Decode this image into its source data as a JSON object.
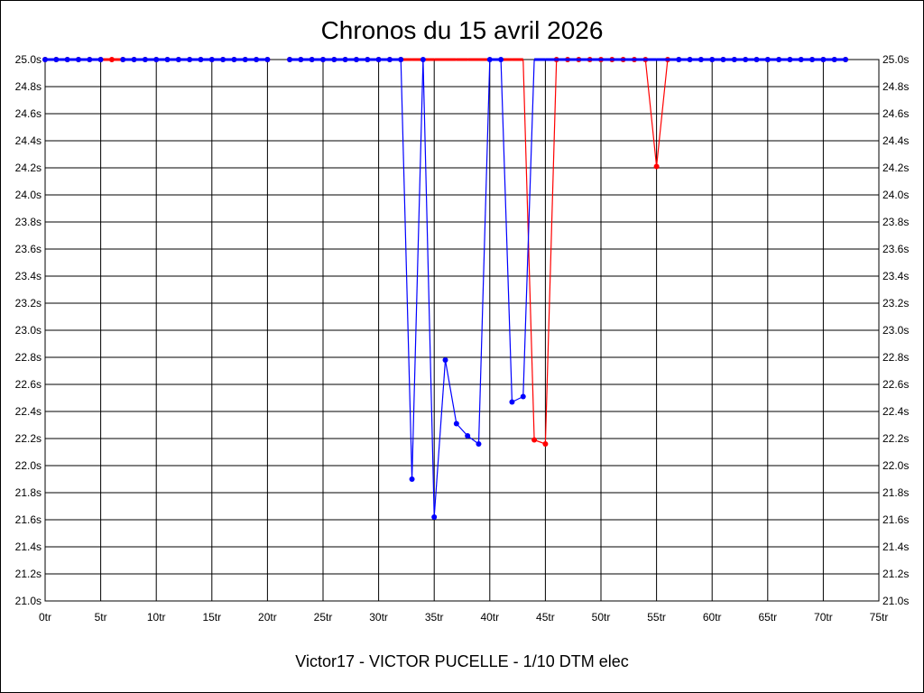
{
  "chart_data": {
    "type": "line",
    "title": "Chronos du 15 avril 2026",
    "subtitle": "",
    "footer": "Victor17 - VICTOR PUCELLE - 1/10 DTM elec",
    "xlabel": "",
    "ylabel": "",
    "xlim": [
      0,
      75
    ],
    "ylim": [
      21.0,
      25.0
    ],
    "grid": true,
    "x_ticks": [
      0,
      5,
      10,
      15,
      20,
      25,
      30,
      35,
      40,
      45,
      50,
      55,
      60,
      65,
      70,
      75
    ],
    "x_tick_labels": [
      "0tr",
      "5tr",
      "10tr",
      "15tr",
      "20tr",
      "25tr",
      "30tr",
      "35tr",
      "40tr",
      "45tr",
      "50tr",
      "55tr",
      "60tr",
      "65tr",
      "70tr",
      "75tr"
    ],
    "y_ticks": [
      21.0,
      21.2,
      21.4,
      21.6,
      21.8,
      22.0,
      22.2,
      22.4,
      22.6,
      22.8,
      23.0,
      23.2,
      23.4,
      23.6,
      23.8,
      24.0,
      24.2,
      24.4,
      24.6,
      24.8,
      25.0
    ],
    "y_tick_labels": [
      "21.0s",
      "21.2s",
      "21.4s",
      "21.6s",
      "21.8s",
      "22.0s",
      "22.2s",
      "22.4s",
      "22.6s",
      "22.8s",
      "23.0s",
      "23.2s",
      "23.4s",
      "23.6s",
      "23.8s",
      "24.0s",
      "24.2s",
      "24.4s",
      "24.6s",
      "24.8s",
      "25.0s"
    ],
    "series": [
      {
        "color": "#ff0000",
        "values": [
          [
            0,
            25.0
          ],
          [
            1,
            25.0
          ],
          [
            2,
            25.0
          ],
          [
            3,
            25.0
          ],
          [
            4,
            25.0
          ],
          [
            5,
            25.0
          ],
          [
            6,
            25.0
          ],
          [
            7,
            25.0
          ],
          [
            8,
            25.0
          ],
          [
            9,
            25.0
          ],
          [
            10,
            25.0
          ],
          [
            11,
            25.0
          ],
          [
            12,
            25.0
          ],
          [
            13,
            25.0
          ],
          [
            14,
            25.0
          ],
          [
            15,
            25.0
          ],
          [
            16,
            25.0
          ],
          [
            17,
            25.0
          ],
          [
            18,
            25.0
          ],
          [
            19,
            25.0
          ],
          [
            20,
            25.0
          ],
          [
            22,
            25.0
          ],
          [
            23,
            25.0
          ],
          [
            24,
            25.0
          ],
          [
            25,
            25.0
          ],
          [
            26,
            25.0
          ],
          [
            27,
            25.0
          ],
          [
            28,
            25.0
          ],
          [
            29,
            25.0
          ],
          [
            30,
            25.0
          ],
          [
            31,
            25.0
          ],
          [
            32,
            25.0
          ],
          [
            33,
            25.0
          ],
          [
            34,
            25.0
          ],
          [
            35,
            25.0
          ],
          [
            36,
            25.0
          ],
          [
            37,
            25.0
          ],
          [
            38,
            25.0
          ],
          [
            39,
            25.0
          ],
          [
            40,
            25.0
          ],
          [
            41,
            25.0
          ],
          [
            42,
            25.0
          ],
          [
            43,
            25.0
          ],
          [
            44,
            22.19
          ],
          [
            45,
            22.16
          ],
          [
            46,
            25.0
          ],
          [
            47,
            25.0
          ],
          [
            48,
            25.0
          ],
          [
            49,
            25.0
          ],
          [
            50,
            25.0
          ],
          [
            51,
            25.0
          ],
          [
            52,
            25.0
          ],
          [
            53,
            25.0
          ],
          [
            54,
            25.0
          ],
          [
            55,
            24.21
          ],
          [
            56,
            25.0
          ],
          [
            57,
            25.0
          ],
          [
            58,
            25.0
          ],
          [
            59,
            25.0
          ],
          [
            60,
            25.0
          ],
          [
            61,
            25.0
          ],
          [
            62,
            25.0
          ],
          [
            63,
            25.0
          ],
          [
            64,
            25.0
          ],
          [
            65,
            25.0
          ],
          [
            66,
            25.0
          ],
          [
            67,
            25.0
          ],
          [
            68,
            25.0
          ],
          [
            69,
            25.0
          ],
          [
            70,
            25.0
          ],
          [
            71,
            25.0
          ],
          [
            72,
            25.0
          ]
        ],
        "markers": [
          0,
          1,
          2,
          3,
          4,
          5,
          6,
          7,
          8,
          9,
          10,
          11,
          12,
          13,
          14,
          15,
          16,
          17,
          18,
          19,
          20,
          22,
          23,
          24,
          25,
          26,
          27,
          28,
          29,
          30,
          31,
          32,
          44,
          45,
          46,
          47,
          48,
          49,
          50,
          51,
          52,
          53,
          54,
          55,
          56,
          57,
          58,
          59,
          60,
          61,
          62,
          63,
          64,
          65,
          66,
          67,
          68,
          69,
          70,
          71,
          72
        ]
      },
      {
        "color": "#0000ff",
        "values": [
          [
            0,
            25.0
          ],
          [
            1,
            25.0
          ],
          [
            2,
            25.0
          ],
          [
            3,
            25.0
          ],
          [
            4,
            25.0
          ],
          [
            5,
            25.0
          ],
          [
            7,
            25.0
          ],
          [
            8,
            25.0
          ],
          [
            9,
            25.0
          ],
          [
            10,
            25.0
          ],
          [
            11,
            25.0
          ],
          [
            12,
            25.0
          ],
          [
            13,
            25.0
          ],
          [
            14,
            25.0
          ],
          [
            15,
            25.0
          ],
          [
            16,
            25.0
          ],
          [
            17,
            25.0
          ],
          [
            18,
            25.0
          ],
          [
            19,
            25.0
          ],
          [
            20,
            25.0
          ],
          [
            22,
            25.0
          ],
          [
            23,
            25.0
          ],
          [
            24,
            25.0
          ],
          [
            25,
            25.0
          ],
          [
            26,
            25.0
          ],
          [
            27,
            25.0
          ],
          [
            28,
            25.0
          ],
          [
            29,
            25.0
          ],
          [
            30,
            25.0
          ],
          [
            31,
            25.0
          ],
          [
            32,
            25.0
          ],
          [
            33,
            21.9
          ],
          [
            34,
            25.0
          ],
          [
            35,
            21.62
          ],
          [
            36,
            22.78
          ],
          [
            37,
            22.31
          ],
          [
            38,
            22.22
          ],
          [
            39,
            22.16
          ],
          [
            40,
            25.0
          ],
          [
            41,
            25.0
          ],
          [
            42,
            22.47
          ],
          [
            43,
            22.51
          ],
          [
            44,
            25.0
          ],
          [
            45,
            25.0
          ],
          [
            46,
            25.0
          ],
          [
            47,
            25.0
          ],
          [
            48,
            25.0
          ],
          [
            49,
            25.0
          ],
          [
            50,
            25.0
          ],
          [
            51,
            25.0
          ],
          [
            52,
            25.0
          ],
          [
            53,
            25.0
          ],
          [
            54,
            25.0
          ],
          [
            55,
            25.0
          ],
          [
            56,
            25.0
          ],
          [
            57,
            25.0
          ],
          [
            58,
            25.0
          ],
          [
            59,
            25.0
          ],
          [
            60,
            25.0
          ],
          [
            61,
            25.0
          ],
          [
            62,
            25.0
          ],
          [
            63,
            25.0
          ],
          [
            64,
            25.0
          ],
          [
            65,
            25.0
          ],
          [
            66,
            25.0
          ],
          [
            67,
            25.0
          ],
          [
            68,
            25.0
          ],
          [
            69,
            25.0
          ],
          [
            70,
            25.0
          ],
          [
            71,
            25.0
          ],
          [
            72,
            25.0
          ]
        ],
        "markers": [
          0,
          1,
          2,
          3,
          4,
          5,
          7,
          8,
          9,
          10,
          11,
          12,
          13,
          14,
          15,
          16,
          17,
          18,
          19,
          20,
          22,
          23,
          24,
          25,
          26,
          27,
          28,
          29,
          30,
          31,
          32,
          33,
          34,
          35,
          36,
          37,
          38,
          39,
          40,
          41,
          42,
          43,
          57,
          58,
          59,
          60,
          61,
          62,
          63,
          64,
          65,
          66,
          67,
          68,
          69,
          70,
          71,
          72
        ]
      }
    ]
  }
}
